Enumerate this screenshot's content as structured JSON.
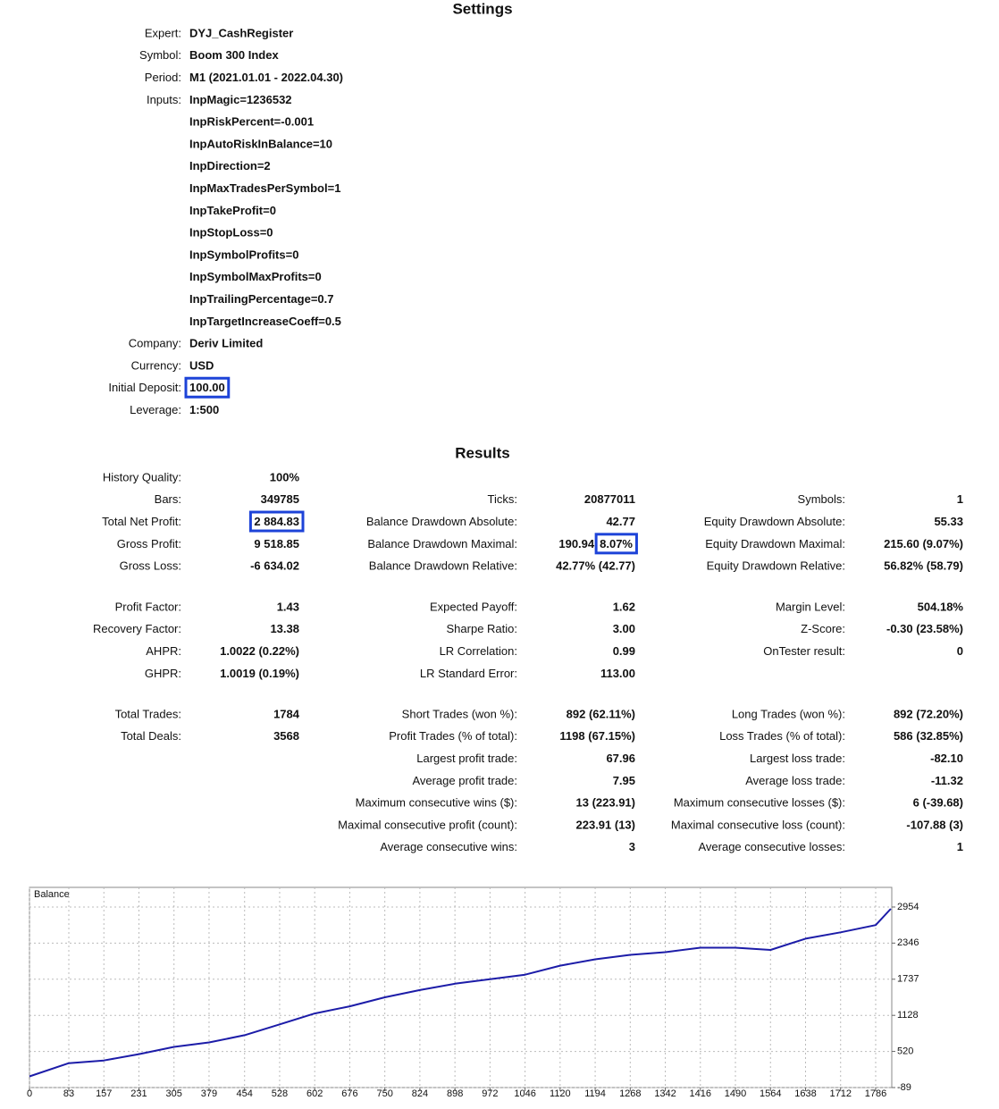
{
  "settings": {
    "title": "Settings",
    "rows": [
      {
        "label": "Expert:",
        "values": [
          "DYJ_CashRegister"
        ]
      },
      {
        "label": "Symbol:",
        "values": [
          "Boom 300 Index"
        ]
      },
      {
        "label": "Period:",
        "values": [
          "M1 (2021.01.01 - 2022.04.30)"
        ]
      },
      {
        "label": "Inputs:",
        "values": [
          "InpMagic=1236532",
          "InpRiskPercent=-0.001",
          "InpAutoRiskInBalance=10",
          "InpDirection=2",
          "InpMaxTradesPerSymbol=1",
          "InpTakeProfit=0",
          "InpStopLoss=0",
          "InpSymbolProfits=0",
          "InpSymbolMaxProfits=0",
          "InpTrailingPercentage=0.7",
          "InpTargetIncreaseCoeff=0.5"
        ]
      },
      {
        "label": "Company:",
        "values": [
          "Deriv Limited"
        ]
      },
      {
        "label": "Currency:",
        "values": [
          "USD"
        ]
      },
      {
        "label": "Initial Deposit:",
        "values": [
          "100.00"
        ],
        "boxed": true
      },
      {
        "label": "Leverage:",
        "values": [
          "1:500"
        ]
      }
    ]
  },
  "results": {
    "title": "Results",
    "sections": [
      {
        "rows": [
          [
            {
              "label": "History Quality:",
              "value": "100%"
            },
            null,
            null
          ],
          [
            {
              "label": "Bars:",
              "value": "349785"
            },
            {
              "label": "Ticks:",
              "value": "20877011"
            },
            {
              "label": "Symbols:",
              "value": "1"
            }
          ],
          [
            {
              "label": "Total Net Profit:",
              "value": "2 884.83",
              "boxed": true
            },
            {
              "label": "Balance Drawdown Absolute:",
              "value": "42.77"
            },
            {
              "label": "Equity Drawdown Absolute:",
              "value": "55.33"
            }
          ],
          [
            {
              "label": "Gross Profit:",
              "value": "9 518.85"
            },
            {
              "label": "Balance Drawdown Maximal:",
              "value": "190.94",
              "note": "8.07%",
              "note_boxed": true
            },
            {
              "label": "Equity Drawdown Maximal:",
              "value": "215.60 (9.07%)"
            }
          ],
          [
            {
              "label": "Gross Loss:",
              "value": "-6 634.02"
            },
            {
              "label": "Balance Drawdown Relative:",
              "value": "42.77% (42.77)"
            },
            {
              "label": "Equity Drawdown Relative:",
              "value": "56.82% (58.79)"
            }
          ]
        ]
      },
      {
        "rows": [
          [
            {
              "label": "Profit Factor:",
              "value": "1.43"
            },
            {
              "label": "Expected Payoff:",
              "value": "1.62"
            },
            {
              "label": "Margin Level:",
              "value": "504.18%"
            }
          ],
          [
            {
              "label": "Recovery Factor:",
              "value": "13.38"
            },
            {
              "label": "Sharpe Ratio:",
              "value": "3.00"
            },
            {
              "label": "Z-Score:",
              "value": "-0.30 (23.58%)"
            }
          ],
          [
            {
              "label": "AHPR:",
              "value": "1.0022 (0.22%)"
            },
            {
              "label": "LR Correlation:",
              "value": "0.99"
            },
            {
              "label": "OnTester result:",
              "value": "0"
            }
          ],
          [
            {
              "label": "GHPR:",
              "value": "1.0019 (0.19%)"
            },
            {
              "label": "LR Standard Error:",
              "value": "113.00"
            },
            null
          ]
        ]
      },
      {
        "rows": [
          [
            {
              "label": "Total Trades:",
              "value": "1784"
            },
            {
              "label": "Short Trades (won %):",
              "value": "892 (62.11%)"
            },
            {
              "label": "Long Trades (won %):",
              "value": "892 (72.20%)"
            }
          ],
          [
            {
              "label": "Total Deals:",
              "value": "3568"
            },
            {
              "label": "Profit Trades (% of total):",
              "value": "1198 (67.15%)"
            },
            {
              "label": "Loss Trades (% of total):",
              "value": "586 (32.85%)"
            }
          ],
          [
            null,
            {
              "label": "Largest profit trade:",
              "value": "67.96"
            },
            {
              "label": "Largest loss trade:",
              "value": "-82.10"
            }
          ],
          [
            null,
            {
              "label": "Average profit trade:",
              "value": "7.95"
            },
            {
              "label": "Average loss trade:",
              "value": "-11.32"
            }
          ],
          [
            null,
            {
              "label": "Maximum consecutive wins ($):",
              "value": "13 (223.91)"
            },
            {
              "label": "Maximum consecutive losses ($):",
              "value": "6 (-39.68)"
            }
          ],
          [
            null,
            {
              "label": "Maximal consecutive profit (count):",
              "value": "223.91 (13)"
            },
            {
              "label": "Maximal consecutive loss (count):",
              "value": "-107.88 (3)"
            }
          ],
          [
            null,
            {
              "label": "Average consecutive wins:",
              "value": "3"
            },
            {
              "label": "Average consecutive losses:",
              "value": "1"
            }
          ]
        ]
      }
    ]
  },
  "balance_chart": {
    "type": "line",
    "title": "Balance",
    "color": "#1c1ca8",
    "x": [
      0,
      83,
      157,
      231,
      305,
      379,
      454,
      528,
      602,
      676,
      750,
      824,
      898,
      972,
      1046,
      1120,
      1194,
      1268,
      1342,
      1416,
      1490,
      1564,
      1638,
      1712,
      1786,
      1818
    ],
    "values": [
      100,
      322,
      367,
      474,
      596,
      672,
      793,
      976,
      1159,
      1280,
      1433,
      1554,
      1661,
      1737,
      1813,
      1965,
      2072,
      2148,
      2193,
      2269,
      2269,
      2230,
      2421,
      2528,
      2650,
      2924
    ],
    "xlim": [
      0,
      1820
    ],
    "ylim": [
      -89,
      3285
    ],
    "xticks": [
      0,
      83,
      157,
      231,
      305,
      379,
      454,
      528,
      602,
      676,
      750,
      824,
      898,
      972,
      1046,
      1120,
      1194,
      1268,
      1342,
      1416,
      1490,
      1564,
      1638,
      1712,
      1786
    ],
    "yticks": [
      -89,
      520,
      1128,
      1737,
      2346,
      2954
    ],
    "grid": true
  }
}
